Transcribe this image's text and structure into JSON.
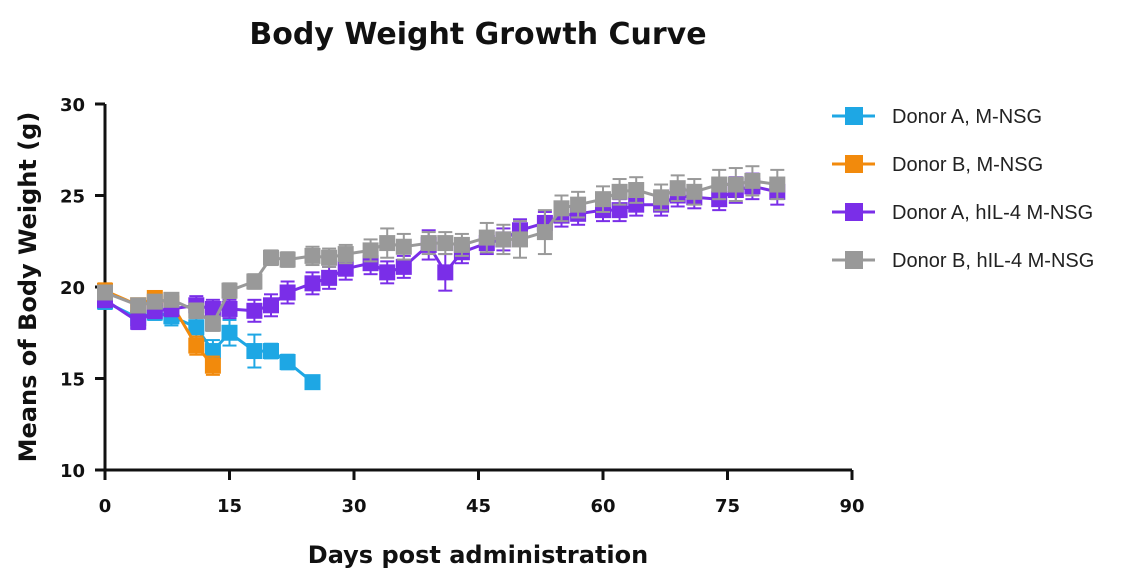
{
  "chart_data": {
    "type": "line",
    "title": "Body Weight Growth Curve",
    "xlabel": "Days post administration",
    "ylabel": "Means of Body Weight (g)",
    "xlim": [
      0,
      90
    ],
    "ylim": [
      10,
      30
    ],
    "xticks": [
      "0",
      "15",
      "30",
      "45",
      "60",
      "75",
      "90"
    ],
    "yticks": [
      "10",
      "15",
      "20",
      "25",
      "30"
    ],
    "legend_position": "right",
    "grid": false,
    "series": [
      {
        "name": "Donor A, M-NSG",
        "color": "#1ea7e4",
        "points": [
          {
            "x": 0,
            "y": 19.2,
            "err": 0.4
          },
          {
            "x": 4,
            "y": 18.3,
            "err": 0.4
          },
          {
            "x": 6,
            "y": 18.6,
            "err": 0.4
          },
          {
            "x": 8,
            "y": 18.4,
            "err": 0.5
          },
          {
            "x": 11,
            "y": 17.8,
            "err": 0.5
          },
          {
            "x": 13,
            "y": 16.5,
            "err": 0.6
          },
          {
            "x": 15,
            "y": 17.5,
            "err": 0.7
          },
          {
            "x": 18,
            "y": 16.5,
            "err": 0.9
          },
          {
            "x": 20,
            "y": 16.5,
            "err": 0.4
          },
          {
            "x": 22,
            "y": 15.9,
            "err": 0.4
          },
          {
            "x": 25,
            "y": 14.8,
            "err": 0.2
          }
        ]
      },
      {
        "name": "Donor B, M-NSG",
        "color": "#f28a0c",
        "points": [
          {
            "x": 0,
            "y": 19.8,
            "err": 0.4
          },
          {
            "x": 4,
            "y": 19.0,
            "err": 0.3
          },
          {
            "x": 6,
            "y": 19.4,
            "err": 0.3
          },
          {
            "x": 8,
            "y": 19.1,
            "err": 0.3
          },
          {
            "x": 11,
            "y": 16.8,
            "err": 0.5
          },
          {
            "x": 13,
            "y": 15.7,
            "err": 0.5
          }
        ]
      },
      {
        "name": "Donor A, hIL-4 M-NSG",
        "color": "#7a2ee8",
        "points": [
          {
            "x": 0,
            "y": 19.3,
            "err": 0.4
          },
          {
            "x": 4,
            "y": 18.1,
            "err": 0.4
          },
          {
            "x": 6,
            "y": 18.7,
            "err": 0.4
          },
          {
            "x": 8,
            "y": 18.8,
            "err": 0.4
          },
          {
            "x": 11,
            "y": 19.0,
            "err": 0.5
          },
          {
            "x": 13,
            "y": 18.8,
            "err": 0.5
          },
          {
            "x": 15,
            "y": 18.8,
            "err": 0.5
          },
          {
            "x": 18,
            "y": 18.7,
            "err": 0.6
          },
          {
            "x": 20,
            "y": 19.0,
            "err": 0.6
          },
          {
            "x": 22,
            "y": 19.7,
            "err": 0.6
          },
          {
            "x": 25,
            "y": 20.2,
            "err": 0.6
          },
          {
            "x": 27,
            "y": 20.5,
            "err": 0.6
          },
          {
            "x": 29,
            "y": 21.0,
            "err": 0.6
          },
          {
            "x": 32,
            "y": 21.3,
            "err": 0.6
          },
          {
            "x": 34,
            "y": 20.8,
            "err": 0.6
          },
          {
            "x": 36,
            "y": 21.1,
            "err": 0.6
          },
          {
            "x": 39,
            "y": 22.3,
            "err": 0.8
          },
          {
            "x": 41,
            "y": 20.8,
            "err": 1.0
          },
          {
            "x": 43,
            "y": 21.9,
            "err": 0.6
          },
          {
            "x": 46,
            "y": 22.4,
            "err": 0.6
          },
          {
            "x": 48,
            "y": 22.6,
            "err": 0.6
          },
          {
            "x": 50,
            "y": 23.1,
            "err": 0.6
          },
          {
            "x": 53,
            "y": 23.5,
            "err": 0.6
          },
          {
            "x": 55,
            "y": 23.9,
            "err": 0.6
          },
          {
            "x": 57,
            "y": 24.0,
            "err": 0.6
          },
          {
            "x": 60,
            "y": 24.2,
            "err": 0.6
          },
          {
            "x": 62,
            "y": 24.2,
            "err": 0.6
          },
          {
            "x": 64,
            "y": 24.5,
            "err": 0.6
          },
          {
            "x": 67,
            "y": 24.5,
            "err": 0.6
          },
          {
            "x": 69,
            "y": 25.0,
            "err": 0.6
          },
          {
            "x": 71,
            "y": 24.9,
            "err": 0.6
          },
          {
            "x": 74,
            "y": 24.8,
            "err": 0.6
          },
          {
            "x": 76,
            "y": 25.3,
            "err": 0.7
          },
          {
            "x": 78,
            "y": 25.5,
            "err": 0.7
          },
          {
            "x": 81,
            "y": 25.2,
            "err": 0.7
          }
        ]
      },
      {
        "name": "Donor B, hIL-4 M-NSG",
        "color": "#999999",
        "points": [
          {
            "x": 0,
            "y": 19.7,
            "err": 0.3
          },
          {
            "x": 4,
            "y": 19.0,
            "err": 0.3
          },
          {
            "x": 6,
            "y": 19.2,
            "err": 0.3
          },
          {
            "x": 8,
            "y": 19.3,
            "err": 0.3
          },
          {
            "x": 11,
            "y": 18.7,
            "err": 0.4
          },
          {
            "x": 13,
            "y": 18.0,
            "err": 0.4
          },
          {
            "x": 15,
            "y": 19.8,
            "err": 0.4
          },
          {
            "x": 18,
            "y": 20.3,
            "err": 0.4
          },
          {
            "x": 20,
            "y": 21.6,
            "err": 0.4
          },
          {
            "x": 22,
            "y": 21.5,
            "err": 0.4
          },
          {
            "x": 25,
            "y": 21.7,
            "err": 0.5
          },
          {
            "x": 27,
            "y": 21.6,
            "err": 0.5
          },
          {
            "x": 29,
            "y": 21.8,
            "err": 0.5
          },
          {
            "x": 32,
            "y": 22.0,
            "err": 0.6
          },
          {
            "x": 34,
            "y": 22.4,
            "err": 0.8
          },
          {
            "x": 36,
            "y": 22.2,
            "err": 0.7
          },
          {
            "x": 39,
            "y": 22.4,
            "err": 0.6
          },
          {
            "x": 41,
            "y": 22.4,
            "err": 0.6
          },
          {
            "x": 43,
            "y": 22.3,
            "err": 0.6
          },
          {
            "x": 46,
            "y": 22.7,
            "err": 0.8
          },
          {
            "x": 48,
            "y": 22.6,
            "err": 0.8
          },
          {
            "x": 50,
            "y": 22.6,
            "err": 1.0
          },
          {
            "x": 53,
            "y": 23.0,
            "err": 1.2
          },
          {
            "x": 55,
            "y": 24.3,
            "err": 0.7
          },
          {
            "x": 57,
            "y": 24.5,
            "err": 0.7
          },
          {
            "x": 60,
            "y": 24.8,
            "err": 0.7
          },
          {
            "x": 62,
            "y": 25.2,
            "err": 0.7
          },
          {
            "x": 64,
            "y": 25.3,
            "err": 0.7
          },
          {
            "x": 67,
            "y": 24.9,
            "err": 0.7
          },
          {
            "x": 69,
            "y": 25.4,
            "err": 0.7
          },
          {
            "x": 71,
            "y": 25.2,
            "err": 0.7
          },
          {
            "x": 74,
            "y": 25.6,
            "err": 0.8
          },
          {
            "x": 76,
            "y": 25.6,
            "err": 0.9
          },
          {
            "x": 78,
            "y": 25.8,
            "err": 0.8
          },
          {
            "x": 81,
            "y": 25.6,
            "err": 0.8
          }
        ]
      }
    ]
  }
}
